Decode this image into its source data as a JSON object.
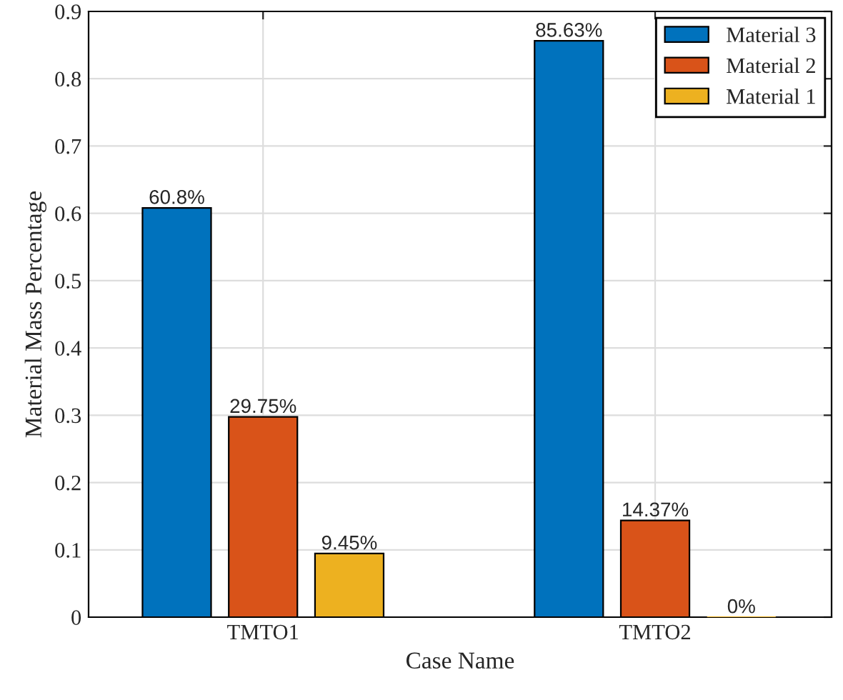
{
  "chart_data": {
    "type": "bar",
    "xlabel": "Case Name",
    "ylabel": "Material Mass Percentage",
    "categories": [
      "TMTO1",
      "TMTO2"
    ],
    "series": [
      {
        "name": "Material 3",
        "color": "#0072bd",
        "values": [
          0.608,
          0.8563
        ],
        "value_labels": [
          "60.8%",
          "85.63%"
        ]
      },
      {
        "name": "Material 2",
        "color": "#d95319",
        "values": [
          0.2975,
          0.1437
        ],
        "value_labels": [
          "29.75%",
          "14.37%"
        ]
      },
      {
        "name": "Material 1",
        "color": "#edb120",
        "values": [
          0.0945,
          0
        ],
        "value_labels": [
          "9.45%",
          "0%"
        ]
      }
    ],
    "ylim": [
      0,
      0.9
    ],
    "yticks": [
      0,
      0.1,
      0.2,
      0.3,
      0.4,
      0.5,
      0.6,
      0.7,
      0.8,
      0.9
    ],
    "grid": true,
    "legend": "top right"
  }
}
